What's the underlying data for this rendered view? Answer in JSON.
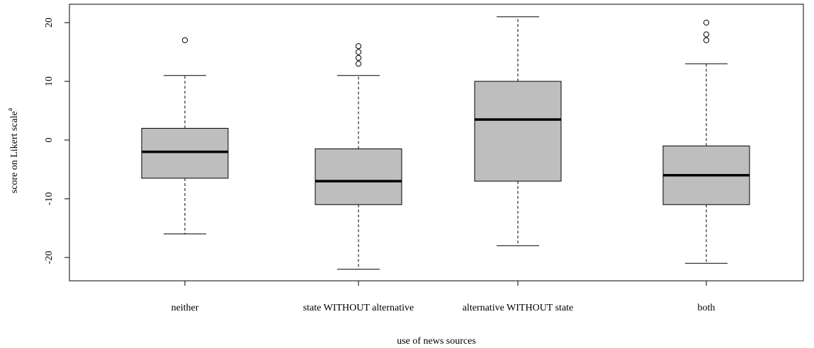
{
  "chart_data": {
    "type": "boxplot",
    "title": "",
    "xlabel": "use of news sources",
    "ylabel": "score on Likert scale",
    "ylabel_superscript": "a",
    "ylim": [
      -24,
      24
    ],
    "yticks": [
      -20,
      -10,
      0,
      10,
      20
    ],
    "ytick_labels": [
      "-20",
      "-10",
      "0",
      "10",
      "20"
    ],
    "grid": false,
    "box_fill": "#bebebe",
    "categories": [
      "neither",
      "state WITHOUT alternative",
      "alternative WITHOUT state",
      "both"
    ],
    "boxes": [
      {
        "whisker_low": -16,
        "q1": -6.5,
        "median": -2,
        "q3": 2,
        "whisker_high": 11,
        "outliers": [
          17
        ]
      },
      {
        "whisker_low": -22,
        "q1": -11,
        "median": -7,
        "q3": -1.5,
        "whisker_high": 11,
        "outliers": [
          13,
          14,
          15,
          16
        ]
      },
      {
        "whisker_low": -18,
        "q1": -7,
        "median": 3.5,
        "q3": 10,
        "whisker_high": 21,
        "outliers": []
      },
      {
        "whisker_low": -21,
        "q1": -11,
        "median": -6,
        "q3": -1,
        "whisker_high": 13,
        "outliers": [
          17,
          18,
          20
        ]
      }
    ]
  }
}
